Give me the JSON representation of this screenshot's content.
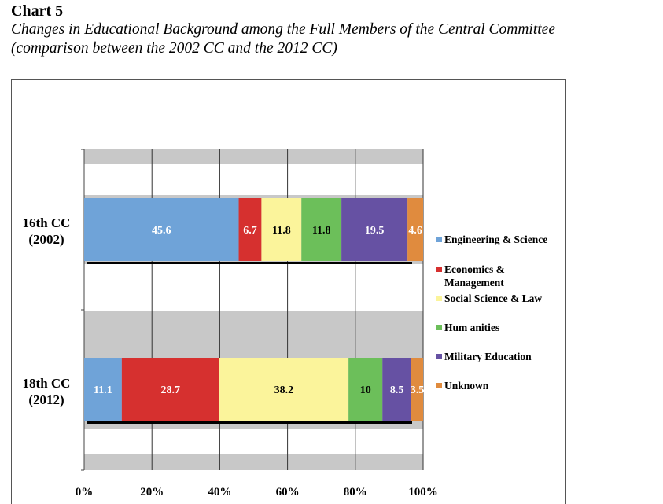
{
  "header": {
    "chart_number": "Chart 5",
    "title_line1": "Changes in Educational Background among the Full Members of the Central Committee",
    "title_line2": "(comparison between the 2002 CC and the 2012 CC)"
  },
  "chart_data": {
    "type": "bar",
    "orientation": "horizontal",
    "stacked": "percent",
    "categories": [
      {
        "line1": "16th CC",
        "line2": "(2002)"
      },
      {
        "line1": "18th CC",
        "line2": "(2012)"
      }
    ],
    "series": [
      {
        "name": "Engineering & Science",
        "name_lines": [
          "Engineering & Science"
        ],
        "color": "#6fa3d8",
        "values": [
          45.6,
          11.1
        ]
      },
      {
        "name": "Economics & Management",
        "name_lines": [
          "Economics &",
          "Management"
        ],
        "color": "#d6302f",
        "values": [
          6.7,
          28.7
        ]
      },
      {
        "name": "Social Science & Law",
        "name_lines": [
          "Social Science & Law"
        ],
        "color": "#fbf49b",
        "values": [
          11.8,
          38.2
        ]
      },
      {
        "name": "Humanities",
        "name_lines": [
          "Hum anities"
        ],
        "color": "#6cbf5a",
        "values": [
          11.8,
          10
        ]
      },
      {
        "name": "Military Education",
        "name_lines": [
          "Military Education"
        ],
        "color": "#6651a3",
        "values": [
          19.5,
          8.5
        ]
      },
      {
        "name": "Unknown",
        "name_lines": [
          "Unknown"
        ],
        "color": "#e08b3e",
        "values": [
          4.6,
          3.5
        ]
      }
    ],
    "data_labels": [
      [
        "45.6",
        "6.7",
        "11.8",
        "11.8",
        "19.5",
        "4.6"
      ],
      [
        "11.1",
        "28.7",
        "38.2",
        "10",
        "8.5",
        "3.5"
      ]
    ],
    "xlim": [
      0,
      100
    ],
    "x_ticks": [
      "0%",
      "20%",
      "40%",
      "60%",
      "80%",
      "100%"
    ],
    "grid": true,
    "legend_position": "right"
  }
}
